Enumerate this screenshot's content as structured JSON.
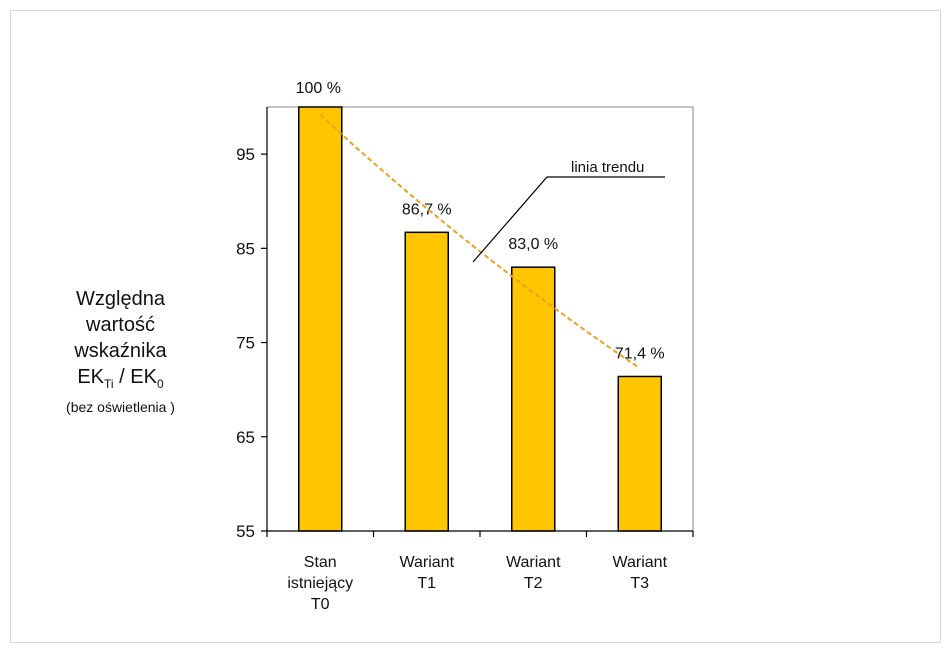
{
  "chart_data": {
    "type": "bar",
    "categories": [
      [
        "Stan",
        "istniejący",
        "T0"
      ],
      [
        "Wariant",
        "T1"
      ],
      [
        "Wariant",
        "T2"
      ],
      [
        "Wariant",
        "T3"
      ]
    ],
    "values": [
      100,
      86.7,
      83.0,
      71.4
    ],
    "data_labels": [
      "100 %",
      "86,7 %",
      "83,0 %",
      "71,4 %"
    ],
    "ylim": [
      55,
      100
    ],
    "yticks": [
      55,
      65,
      75,
      85,
      95
    ],
    "ytick_labels": [
      "55",
      "65",
      "75",
      "85",
      "95"
    ],
    "ylabel": {
      "line1": "Względna",
      "line2": "wartość",
      "line3": "wskaźnika",
      "line4_main": "EK",
      "line4_sub1": "Ti",
      "line4_mid": " / EK",
      "line4_sub2": "0",
      "line5": "(bez oświetlenia )"
    },
    "annotation": "linia trendu",
    "trendline": "exponential",
    "grid": false,
    "colors": {
      "bar_fill": "#FFC600",
      "bar_stroke": "#000000",
      "trend": "#F0A020",
      "axis": "#000000"
    }
  }
}
